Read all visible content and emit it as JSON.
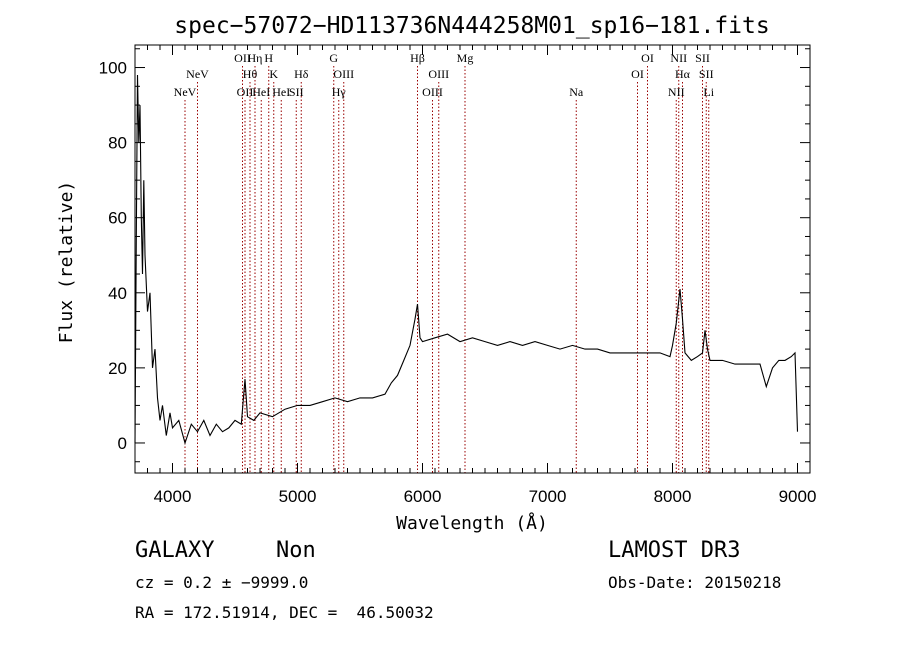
{
  "chart_data": {
    "type": "line",
    "title": "spec−57072−HD113736N444258M01_sp16−181.fits",
    "xlabel": "Wavelength (Å)",
    "ylabel": "Flux (relative)",
    "xlim": [
      3700,
      9100
    ],
    "ylim": [
      -8,
      106
    ],
    "xticks": [
      4000,
      5000,
      6000,
      7000,
      8000,
      9000
    ],
    "yticks": [
      0,
      20,
      40,
      60,
      80,
      100
    ],
    "grid": false,
    "series": [
      {
        "points": [
          [
            3700,
            0
          ],
          [
            3710,
            55
          ],
          [
            3720,
            98
          ],
          [
            3730,
            80
          ],
          [
            3740,
            90
          ],
          [
            3750,
            60
          ],
          [
            3760,
            45
          ],
          [
            3770,
            70
          ],
          [
            3780,
            50
          ],
          [
            3800,
            35
          ],
          [
            3820,
            40
          ],
          [
            3840,
            20
          ],
          [
            3860,
            25
          ],
          [
            3880,
            12
          ],
          [
            3900,
            6
          ],
          [
            3920,
            10
          ],
          [
            3950,
            2
          ],
          [
            3980,
            8
          ],
          [
            4000,
            4
          ],
          [
            4050,
            6
          ],
          [
            4100,
            0
          ],
          [
            4150,
            5
          ],
          [
            4200,
            3
          ],
          [
            4250,
            6
          ],
          [
            4300,
            2
          ],
          [
            4350,
            5
          ],
          [
            4400,
            3
          ],
          [
            4450,
            4
          ],
          [
            4500,
            6
          ],
          [
            4550,
            5
          ],
          [
            4580,
            17
          ],
          [
            4600,
            7
          ],
          [
            4650,
            6
          ],
          [
            4700,
            8
          ],
          [
            4800,
            7
          ],
          [
            4900,
            9
          ],
          [
            5000,
            10
          ],
          [
            5100,
            10
          ],
          [
            5200,
            11
          ],
          [
            5300,
            12
          ],
          [
            5400,
            11
          ],
          [
            5500,
            12
          ],
          [
            5600,
            12
          ],
          [
            5700,
            13
          ],
          [
            5750,
            16
          ],
          [
            5800,
            18
          ],
          [
            5850,
            22
          ],
          [
            5900,
            26
          ],
          [
            5940,
            33
          ],
          [
            5960,
            37
          ],
          [
            5980,
            28
          ],
          [
            6000,
            27
          ],
          [
            6100,
            28
          ],
          [
            6200,
            29
          ],
          [
            6300,
            27
          ],
          [
            6400,
            28
          ],
          [
            6500,
            27
          ],
          [
            6600,
            26
          ],
          [
            6700,
            27
          ],
          [
            6800,
            26
          ],
          [
            6900,
            27
          ],
          [
            7000,
            26
          ],
          [
            7100,
            25
          ],
          [
            7200,
            26
          ],
          [
            7300,
            25
          ],
          [
            7400,
            25
          ],
          [
            7500,
            24
          ],
          [
            7600,
            24
          ],
          [
            7700,
            24
          ],
          [
            7800,
            24
          ],
          [
            7900,
            24
          ],
          [
            7980,
            23
          ],
          [
            8000,
            26
          ],
          [
            8030,
            32
          ],
          [
            8060,
            41
          ],
          [
            8080,
            33
          ],
          [
            8100,
            24
          ],
          [
            8150,
            22
          ],
          [
            8200,
            23
          ],
          [
            8240,
            24
          ],
          [
            8260,
            30
          ],
          [
            8280,
            25
          ],
          [
            8300,
            22
          ],
          [
            8400,
            22
          ],
          [
            8500,
            21
          ],
          [
            8600,
            21
          ],
          [
            8700,
            21
          ],
          [
            8750,
            15
          ],
          [
            8800,
            20
          ],
          [
            8850,
            22
          ],
          [
            8900,
            22
          ],
          [
            8950,
            23
          ],
          [
            8980,
            24
          ],
          [
            9000,
            3
          ]
        ]
      }
    ],
    "lines": [
      {
        "x": 4100,
        "row": 3,
        "label": "NeV"
      },
      {
        "x": 4200,
        "row": 2,
        "label": "NeV"
      },
      {
        "x": 4560,
        "row": 1,
        "label": "OII"
      },
      {
        "x": 4580,
        "row": 3,
        "label": "OII"
      },
      {
        "x": 4620,
        "row": 2,
        "label": "Hθ"
      },
      {
        "x": 4660,
        "row": 1,
        "label": "Hη"
      },
      {
        "x": 4710,
        "row": 3,
        "label": "HeI"
      },
      {
        "x": 4770,
        "row": 1,
        "label": "H"
      },
      {
        "x": 4810,
        "row": 2,
        "label": "K"
      },
      {
        "x": 4870,
        "row": 3,
        "label": "HeI"
      },
      {
        "x": 4990,
        "row": 3,
        "label": "SII"
      },
      {
        "x": 5030,
        "row": 2,
        "label": "Hδ"
      },
      {
        "x": 5290,
        "row": 1,
        "label": "G"
      },
      {
        "x": 5330,
        "row": 3,
        "label": "Hγ"
      },
      {
        "x": 5370,
        "row": 2,
        "label": "OIII"
      },
      {
        "x": 5960,
        "row": 1,
        "label": "Hβ"
      },
      {
        "x": 6080,
        "row": 3,
        "label": "OIII"
      },
      {
        "x": 6130,
        "row": 2,
        "label": "OIII"
      },
      {
        "x": 6340,
        "row": 1,
        "label": "Mg"
      },
      {
        "x": 7230,
        "row": 3,
        "label": "Na"
      },
      {
        "x": 7720,
        "row": 2,
        "label": "OI"
      },
      {
        "x": 7800,
        "row": 1,
        "label": "OI"
      },
      {
        "x": 8030,
        "row": 3,
        "label": "NII"
      },
      {
        "x": 8050,
        "row": 1,
        "label": "NII"
      },
      {
        "x": 8080,
        "row": 2,
        "label": "Hα"
      },
      {
        "x": 8240,
        "row": 1,
        "label": "SII"
      },
      {
        "x": 8270,
        "row": 2,
        "label": "SII"
      },
      {
        "x": 8290,
        "row": 3,
        "label": "Li"
      }
    ],
    "line_color": "#990000"
  },
  "info": {
    "object_class": "GALAXY",
    "subclass": "Non",
    "cz": "cz = 0.2 ± −9999.0",
    "coords": "RA = 172.51914, DEC =  46.50032",
    "survey": "LAMOST DR3",
    "obs_date": "Obs-Date: 20150218"
  }
}
